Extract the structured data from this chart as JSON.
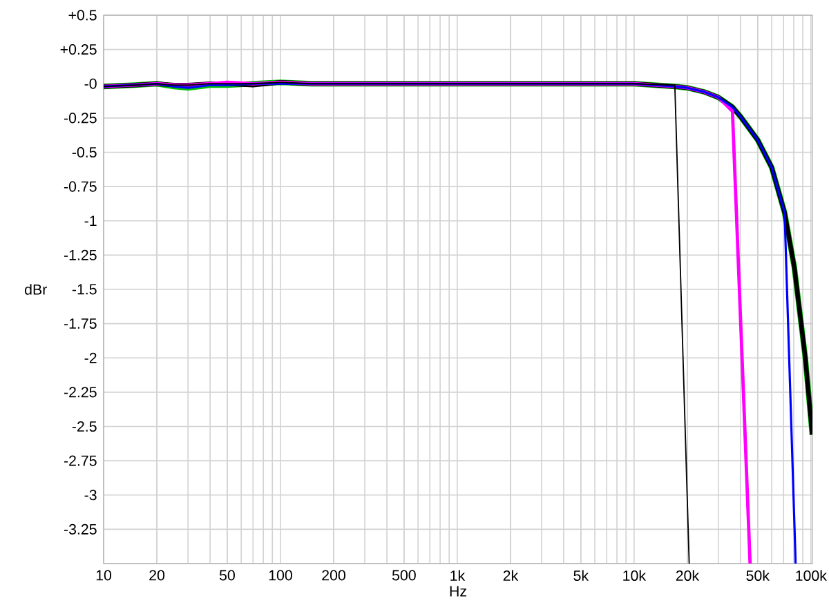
{
  "chart_data": {
    "type": "line",
    "xlabel": "Hz",
    "ylabel": "dBr",
    "log": "x",
    "grid": true,
    "marker": "none",
    "line_style": "solid",
    "xlim": [
      10,
      102000
    ],
    "ylim": [
      -3.5,
      0.5
    ],
    "xticks": [
      10,
      20,
      50,
      100,
      200,
      500,
      {
        "value": 1000,
        "label": "1k"
      },
      {
        "value": 2000,
        "label": "2k"
      },
      {
        "value": 5000,
        "label": "5k"
      },
      {
        "value": 10000,
        "label": "10k"
      },
      {
        "value": 20000,
        "label": "20k"
      },
      {
        "value": 50000,
        "label": "50k"
      },
      {
        "value": 100000,
        "label": "100k"
      }
    ],
    "yticks": [
      {
        "value": 0.5,
        "label": "+0.5"
      },
      {
        "value": 0.25,
        "label": "+0.25"
      },
      {
        "value": 0,
        "label": "-0"
      },
      -0.25,
      -0.5,
      -0.75,
      -1,
      -1.25,
      -1.5,
      -1.75,
      -2,
      -2.25,
      -2.5,
      -2.75,
      -3,
      -3.25,
      {
        "value": -3.5,
        "label": null
      }
    ],
    "series": [
      {
        "color": "#00c000",
        "x": [
          10,
          15,
          20,
          25,
          30,
          40,
          50,
          70,
          100,
          150,
          1000,
          5000,
          10000,
          17000,
          20000,
          25000,
          30000,
          36000,
          40000,
          50000,
          60000,
          71000,
          80600,
          93000,
          101800
        ],
        "values": [
          -0.02,
          -0.01,
          0,
          -0.02,
          -0.03,
          -0.01,
          -0.01,
          0,
          0.01,
          0,
          0,
          0,
          0,
          -0.02,
          -0.03,
          -0.06,
          -0.1,
          -0.17,
          -0.24,
          -0.41,
          -0.61,
          -0.94,
          -1.34,
          -2.0,
          -2.56
        ]
      },
      {
        "color": "#000000",
        "x": [
          10,
          15,
          20,
          25,
          30,
          40,
          50,
          70,
          100,
          150,
          1000,
          5000,
          10000,
          17000,
          20000,
          25000,
          30000,
          36000,
          40000,
          50000,
          60000,
          71000,
          80600,
          93000,
          101800
        ],
        "values": [
          -0.02,
          -0.01,
          0,
          -0.01,
          -0.01,
          0,
          0,
          -0.01,
          0.01,
          0,
          0,
          0,
          0,
          -0.02,
          -0.03,
          -0.06,
          -0.1,
          -0.17,
          -0.24,
          -0.41,
          -0.61,
          -0.94,
          -1.34,
          -2.0,
          -2.56
        ]
      },
      {
        "color": "#ff00ff",
        "x": [
          10,
          15,
          20,
          25,
          30,
          40,
          50,
          70,
          100,
          150,
          1000,
          5000,
          10000,
          17000,
          20000,
          25000,
          30000,
          36000,
          45300
        ],
        "values": [
          -0.02,
          -0.01,
          0,
          -0.01,
          -0.01,
          0,
          0.01,
          0,
          0.01,
          0,
          0,
          0,
          0,
          -0.02,
          -0.03,
          -0.06,
          -0.1,
          -0.2,
          -3.5
        ]
      },
      {
        "color": "#0000ff",
        "x": [
          10,
          15,
          20,
          25,
          30,
          40,
          50,
          70,
          100,
          150,
          1000,
          5000,
          10000,
          17000,
          20000,
          25000,
          30000,
          36000,
          40000,
          50000,
          60000,
          71000,
          82000
        ],
        "values": [
          -0.02,
          -0.01,
          0,
          -0.02,
          -0.03,
          -0.01,
          -0.01,
          0,
          0,
          0,
          0,
          0,
          0,
          -0.02,
          -0.03,
          -0.06,
          -0.1,
          -0.17,
          -0.24,
          -0.41,
          -0.61,
          -0.94,
          -3.5
        ]
      },
      {
        "color": "#000000",
        "x": [
          10,
          15,
          20,
          25,
          30,
          40,
          50,
          70,
          100,
          150,
          1000,
          5000,
          10000,
          17000,
          20500
        ],
        "values": [
          -0.02,
          -0.01,
          0,
          -0.01,
          -0.01,
          0,
          0,
          0,
          0.01,
          0,
          0,
          0,
          0,
          -0.01,
          -3.5
        ]
      }
    ]
  }
}
